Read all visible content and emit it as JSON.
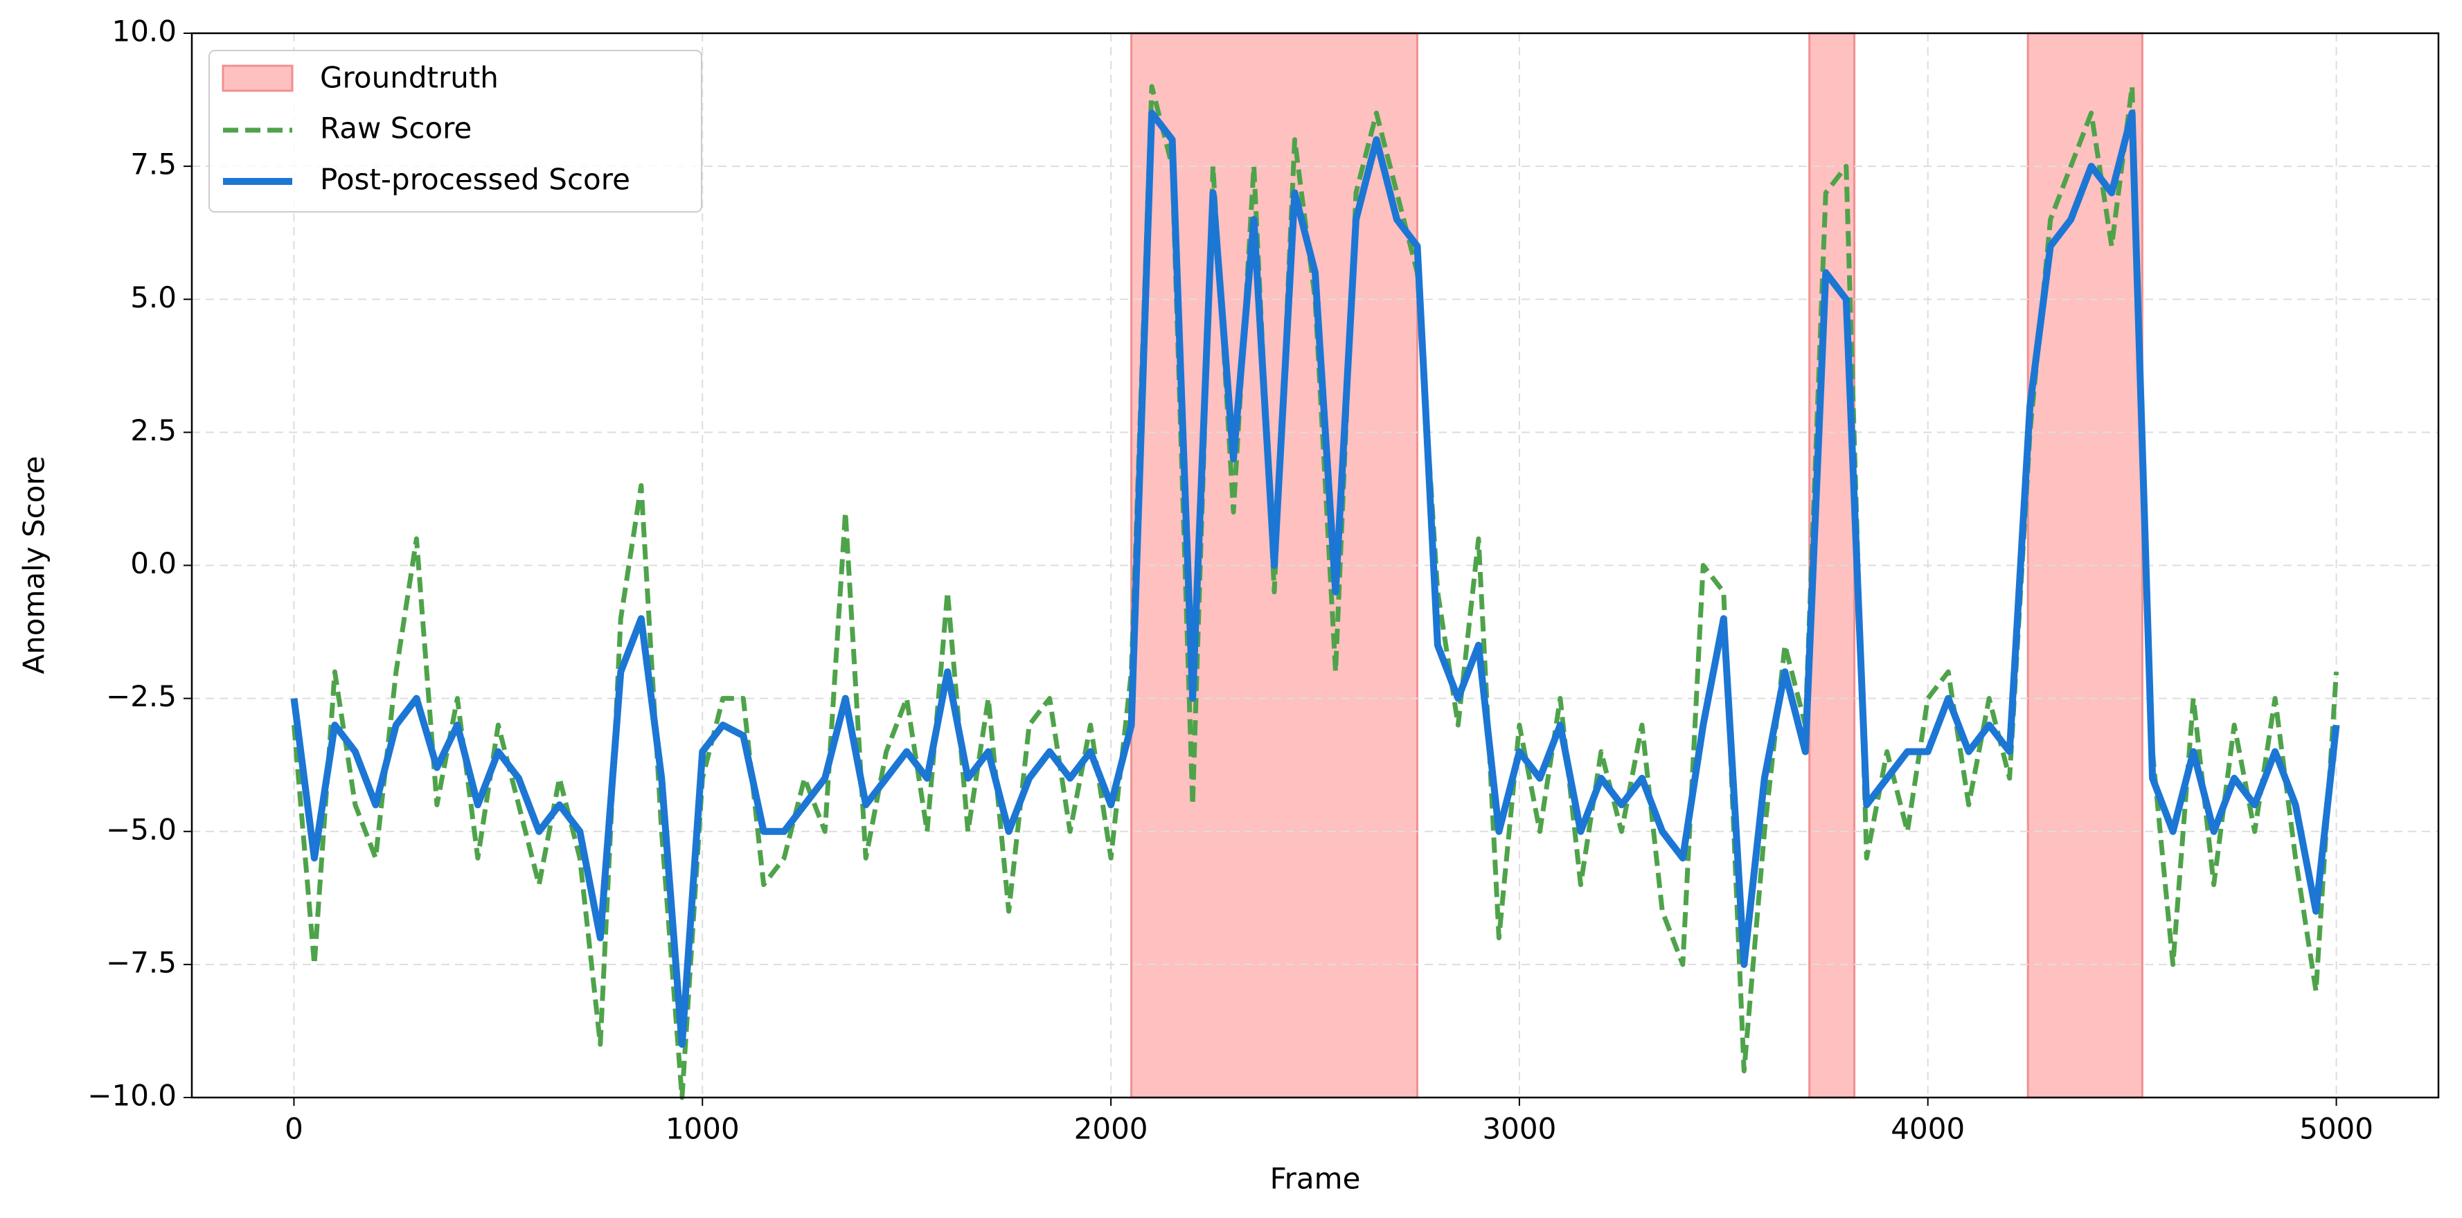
{
  "chart_data": {
    "type": "line",
    "xlabel": "Frame",
    "ylabel": "Anomaly Score",
    "xlim": [
      -250,
      5250
    ],
    "ylim": [
      -10,
      10
    ],
    "xticks": [
      0,
      1000,
      2000,
      3000,
      4000,
      5000
    ],
    "yticks": [
      {
        "value": -10,
        "label": "−10.0"
      },
      {
        "value": -7.5,
        "label": "−7.5"
      },
      {
        "value": -5,
        "label": "−5.0"
      },
      {
        "value": -2.5,
        "label": "−2.5"
      },
      {
        "value": 0,
        "label": "0.0"
      },
      {
        "value": 2.5,
        "label": "2.5"
      },
      {
        "value": 5,
        "label": "5.0"
      },
      {
        "value": 7.5,
        "label": "7.5"
      },
      {
        "value": 10,
        "label": "10.0"
      }
    ],
    "grid": true,
    "legend": "upper left",
    "spans": {
      "name": "Groundtruth",
      "color": "#ffc0c0",
      "edge": "#f09090",
      "ranges": [
        [
          2050,
          2750
        ],
        [
          3710,
          3820
        ],
        [
          4245,
          4525
        ]
      ]
    },
    "x": [
      0,
      50,
      100,
      150,
      200,
      250,
      300,
      350,
      400,
      450,
      500,
      550,
      600,
      650,
      700,
      750,
      800,
      850,
      900,
      950,
      1000,
      1050,
      1100,
      1150,
      1200,
      1250,
      1300,
      1350,
      1400,
      1450,
      1500,
      1550,
      1600,
      1650,
      1700,
      1750,
      1800,
      1850,
      1900,
      1950,
      2000,
      2050,
      2100,
      2150,
      2200,
      2250,
      2300,
      2350,
      2400,
      2450,
      2500,
      2550,
      2600,
      2650,
      2700,
      2750,
      2800,
      2850,
      2900,
      2950,
      3000,
      3050,
      3100,
      3150,
      3200,
      3250,
      3300,
      3350,
      3400,
      3450,
      3500,
      3550,
      3600,
      3650,
      3700,
      3750,
      3800,
      3850,
      3900,
      3950,
      4000,
      4050,
      4100,
      4150,
      4200,
      4250,
      4300,
      4350,
      4400,
      4450,
      4500,
      4550,
      4600,
      4650,
      4700,
      4750,
      4800,
      4850,
      4900,
      4950,
      5000
    ],
    "series": [
      {
        "name": "Raw Score",
        "color": "#4ea34a",
        "dash": true,
        "width": 7,
        "values": [
          -3,
          -7.5,
          -2,
          -4.5,
          -5.5,
          -2,
          0.5,
          -4.5,
          -2.5,
          -5.5,
          -3,
          -4.5,
          -6,
          -4,
          -5.5,
          -9,
          -1,
          1.5,
          -5,
          -10,
          -4,
          -2.5,
          -2.5,
          -6,
          -5.5,
          -4,
          -5,
          1,
          -5.5,
          -3.5,
          -2.5,
          -5,
          -0.5,
          -5,
          -2.5,
          -6.5,
          -3,
          -2.5,
          -5,
          -3,
          -5.5,
          -2,
          9,
          7.5,
          -4.5,
          7.5,
          1,
          7.5,
          -0.5,
          8,
          5,
          -2,
          7,
          8.5,
          7,
          5.5,
          -0.5,
          -3,
          0.5,
          -7,
          -3,
          -5,
          -2.5,
          -6,
          -3.5,
          -5,
          -3,
          -6.5,
          -7.5,
          0,
          -0.5,
          -9.5,
          -5,
          -1.5,
          -3,
          7,
          7.5,
          -5.5,
          -3.5,
          -5,
          -2.5,
          -2,
          -4.5,
          -2.5,
          -4,
          2.5,
          6.5,
          7.5,
          8.5,
          6,
          9,
          -3.5,
          -7.5,
          -2.5,
          -6,
          -3,
          -5,
          -2.5,
          -5.5,
          -8,
          -2
        ]
      },
      {
        "name": "Post-processed Score",
        "color": "#1c76d4",
        "dash": false,
        "width": 10,
        "values": [
          -2.5,
          -5.5,
          -3,
          -3.5,
          -4.5,
          -3,
          -2.5,
          -3.8,
          -3,
          -4.5,
          -3.5,
          -4,
          -5,
          -4.5,
          -5,
          -7,
          -2,
          -1,
          -4,
          -9,
          -3.5,
          -3,
          -3.2,
          -5,
          -5,
          -4.5,
          -4,
          -2.5,
          -4.5,
          -4,
          -3.5,
          -4,
          -2,
          -4,
          -3.5,
          -5,
          -4,
          -3.5,
          -4,
          -3.5,
          -4.5,
          -3,
          8.5,
          8,
          -2.5,
          7,
          2,
          6.5,
          0,
          7,
          5.5,
          -0.5,
          6.5,
          8,
          6.5,
          6,
          -1.5,
          -2.5,
          -1.5,
          -5,
          -3.5,
          -4,
          -3,
          -5,
          -4,
          -4.5,
          -4,
          -5,
          -5.5,
          -3,
          -1,
          -7.5,
          -4,
          -2,
          -3.5,
          5.5,
          5,
          -4.5,
          -4,
          -3.5,
          -3.5,
          -2.5,
          -3.5,
          -3,
          -3.5,
          3,
          6,
          6.5,
          7.5,
          7,
          8.5,
          -4,
          -5,
          -3.5,
          -5,
          -4,
          -4.5,
          -3.5,
          -4.5,
          -6.5,
          -3
        ]
      }
    ]
  }
}
